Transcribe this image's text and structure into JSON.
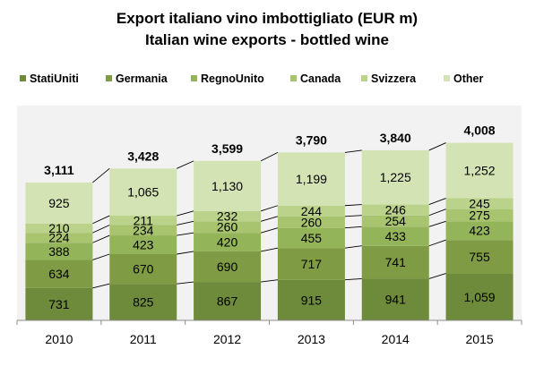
{
  "chart_data": {
    "type": "bar",
    "stacked": true,
    "title": "Export italiano vino imbottigliato (EUR m)",
    "subtitle": "Italian wine exports - bottled wine",
    "categories": [
      "2010",
      "2011",
      "2012",
      "2013",
      "2014",
      "2015"
    ],
    "series": [
      {
        "name": "StatiUniti",
        "values": [
          731,
          825,
          867,
          915,
          941,
          1059
        ],
        "labels": [
          "731",
          "825",
          "867",
          "915",
          "941",
          "1,059"
        ],
        "color": "#6e8a3b"
      },
      {
        "name": "Germania",
        "values": [
          634,
          670,
          690,
          717,
          741,
          755
        ],
        "labels": [
          "634",
          "670",
          "690",
          "717",
          "741",
          "755"
        ],
        "color": "#7f9c44"
      },
      {
        "name": "RegnoUnito",
        "values": [
          388,
          423,
          420,
          455,
          433,
          423
        ],
        "labels": [
          "388",
          "423",
          "420",
          "455",
          "433",
          "423"
        ],
        "color": "#94b45a"
      },
      {
        "name": "Canada",
        "values": [
          224,
          234,
          260,
          260,
          254,
          275
        ],
        "labels": [
          "224",
          "234",
          "260",
          "260",
          "254",
          "275"
        ],
        "color": "#a8c46e"
      },
      {
        "name": "Svizzera",
        "values": [
          210,
          211,
          232,
          244,
          246,
          245
        ],
        "labels": [
          "210",
          "211",
          "232",
          "244",
          "246",
          "245"
        ],
        "color": "#bad289"
      },
      {
        "name": "Other",
        "values": [
          925,
          1065,
          1130,
          1199,
          1225,
          1252
        ],
        "labels": [
          "925",
          "1,065",
          "1,130",
          "1,199",
          "1,225",
          "1,252"
        ],
        "color": "#d4e3b4"
      }
    ],
    "totals": [
      3111,
      3428,
      3599,
      3790,
      3840,
      4008
    ],
    "total_labels": [
      "3,111",
      "3,428",
      "3,599",
      "3,790",
      "3,840",
      "4,008"
    ],
    "ylim": [
      0,
      4200
    ],
    "legend": "top",
    "grid": false,
    "plot_background": "#f2f2f2"
  }
}
